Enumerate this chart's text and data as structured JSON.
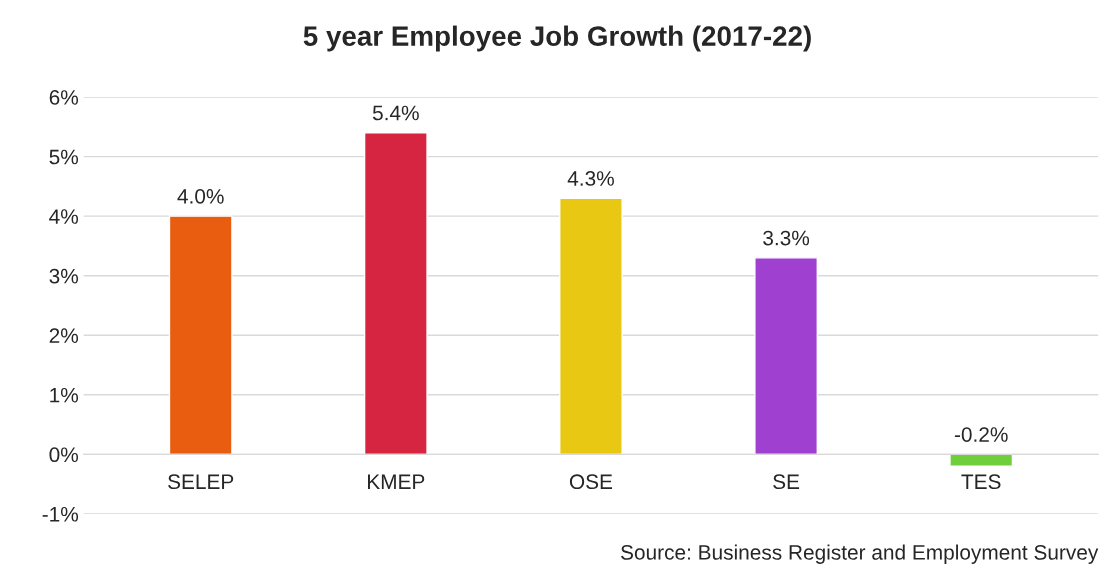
{
  "chart_data": {
    "type": "bar",
    "title": "5 year Employee Job Growth (2017-22)",
    "categories": [
      "SELEP",
      "KMEP",
      "OSE",
      "SE",
      "TES"
    ],
    "values": [
      4.0,
      5.4,
      4.3,
      3.3,
      -0.2
    ],
    "colors": [
      "#e85d0f",
      "#d62541",
      "#e8c813",
      "#a040d0",
      "#6fcf3a"
    ],
    "value_labels": [
      "4.0%",
      "5.4%",
      "4.3%",
      "3.3%",
      "-0.2%"
    ],
    "ylim": [
      -1,
      6
    ],
    "yticks": [
      {
        "value": -1,
        "label": "-1%"
      },
      {
        "value": 0,
        "label": "0%"
      },
      {
        "value": 1,
        "label": "1%"
      },
      {
        "value": 2,
        "label": "2%"
      },
      {
        "value": 3,
        "label": "3%"
      },
      {
        "value": 4,
        "label": "4%"
      },
      {
        "value": 5,
        "label": "5%"
      },
      {
        "value": 6,
        "label": "6%"
      }
    ],
    "grid": "y",
    "annotations": [
      "Source: Business Register and Employment Survey"
    ]
  }
}
